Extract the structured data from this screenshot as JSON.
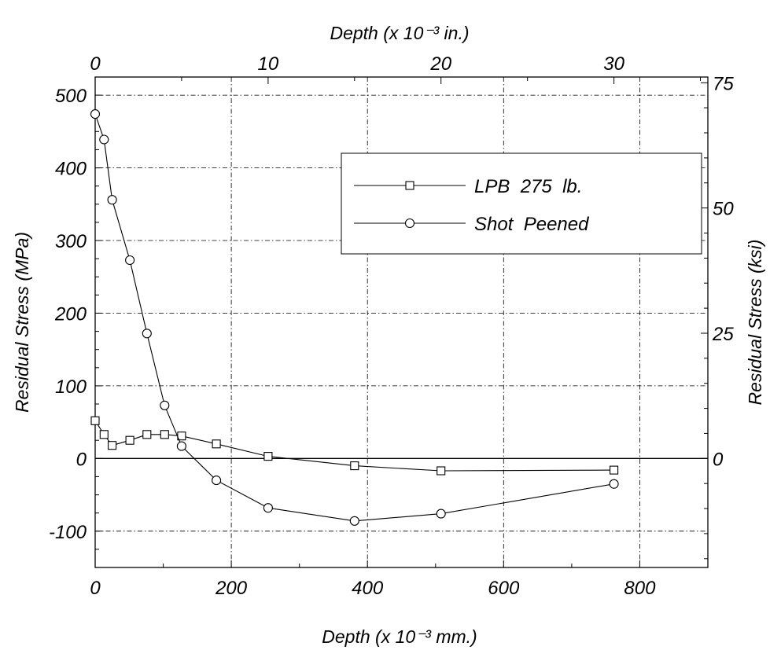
{
  "chart_data": {
    "type": "line",
    "x_bottom": {
      "label": "Depth (x 10⁻³ mm.)",
      "range": [
        0,
        900
      ],
      "ticks": [
        0,
        200,
        400,
        600,
        800
      ],
      "tick_labels": [
        "0",
        "200",
        "400",
        "600",
        "800"
      ]
    },
    "x_top": {
      "label": "Depth (x 10⁻³ in.)",
      "range": [
        0,
        35.43
      ],
      "ticks": [
        0,
        10,
        20,
        30
      ],
      "tick_labels": [
        "0",
        "10",
        "20",
        "30"
      ]
    },
    "y_left": {
      "label": "Residual Stress (MPa)",
      "range": [
        -150,
        525
      ],
      "ticks": [
        -100,
        0,
        100,
        200,
        300,
        400,
        500
      ],
      "tick_labels": [
        "-100",
        "0",
        "100",
        "200",
        "300",
        "400",
        "500"
      ]
    },
    "y_right": {
      "label": "Residual Stress (ksi)",
      "range": [
        -21.76,
        76.14
      ],
      "ticks": [
        0,
        25,
        50,
        75
      ],
      "tick_labels": [
        "0",
        "25",
        "50",
        "75"
      ]
    },
    "grid": true,
    "legend_position": "upper-right",
    "series": [
      {
        "name": "LPB  275  lb.",
        "marker": "square",
        "x": [
          0,
          13,
          25,
          51,
          76,
          102,
          127,
          178,
          254,
          381,
          508,
          762
        ],
        "y": [
          52,
          33,
          18,
          25,
          33,
          33,
          31,
          20,
          3,
          -10,
          -17,
          -16
        ]
      },
      {
        "name": "Shot  Peened",
        "marker": "circle",
        "x": [
          0,
          13,
          25,
          51,
          76,
          102,
          127,
          178,
          254,
          381,
          508,
          762
        ],
        "y": [
          474,
          439,
          356,
          273,
          172,
          73,
          17,
          -30,
          -68,
          -86,
          -76,
          -35
        ]
      }
    ]
  }
}
